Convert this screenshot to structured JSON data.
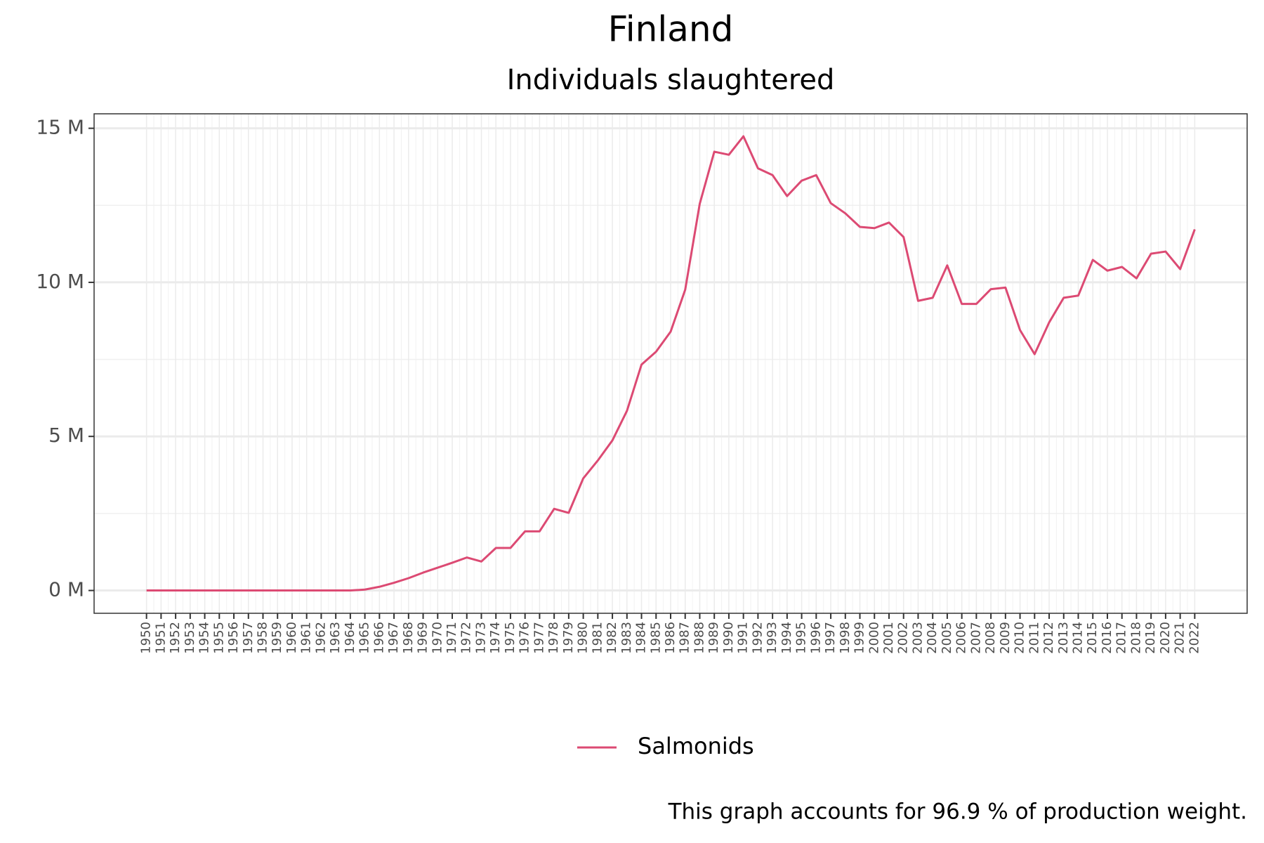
{
  "chart_data": {
    "type": "line",
    "title": "Finland",
    "subtitle": "Individuals slaughtered",
    "x": [
      1950,
      1951,
      1952,
      1953,
      1954,
      1955,
      1956,
      1957,
      1958,
      1959,
      1960,
      1961,
      1962,
      1963,
      1964,
      1965,
      1966,
      1967,
      1968,
      1969,
      1970,
      1971,
      1972,
      1973,
      1974,
      1975,
      1976,
      1977,
      1978,
      1979,
      1980,
      1981,
      1982,
      1983,
      1984,
      1985,
      1986,
      1987,
      1988,
      1989,
      1990,
      1991,
      1992,
      1993,
      1994,
      1995,
      1996,
      1997,
      1998,
      1999,
      2000,
      2001,
      2002,
      2003,
      2004,
      2005,
      2006,
      2007,
      2008,
      2009,
      2010,
      2011,
      2012,
      2013,
      2014,
      2015,
      2016,
      2017,
      2018,
      2019,
      2020,
      2021,
      2022
    ],
    "series": [
      {
        "name": "Salmonids",
        "color": "#dc4a73",
        "values": [
          0,
          0,
          0,
          0,
          0,
          0,
          0,
          0,
          0,
          0,
          0,
          0,
          0,
          0,
          0,
          0.03,
          0.12,
          0.25,
          0.4,
          0.58,
          0.74,
          0.9,
          1.07,
          0.94,
          1.38,
          1.38,
          1.92,
          1.92,
          2.65,
          2.52,
          3.64,
          4.22,
          4.87,
          5.83,
          7.33,
          7.75,
          8.4,
          9.76,
          12.55,
          14.24,
          14.14,
          14.74,
          13.7,
          13.48,
          12.8,
          13.3,
          13.48,
          12.57,
          12.24,
          11.8,
          11.76,
          11.94,
          11.47,
          9.4,
          9.5,
          10.55,
          9.3,
          9.3,
          9.78,
          9.83,
          8.45,
          7.67,
          8.7,
          9.5,
          9.57,
          10.73,
          10.38,
          10.5,
          10.13,
          10.93,
          11.0,
          10.43,
          11.72
        ]
      }
    ],
    "xlim": [
      1946.4,
      2025.6
    ],
    "ylim": [
      -0.74,
      15.47
    ],
    "yticks": [
      {
        "value": 0,
        "label": "0 M"
      },
      {
        "value": 5,
        "label": "5 M"
      },
      {
        "value": 10,
        "label": "10 M"
      },
      {
        "value": 15,
        "label": "15 M"
      }
    ],
    "yminor": [
      2.5,
      7.5,
      12.5
    ],
    "grid": true,
    "legend": "bottom",
    "caption": "This graph accounts for 96.9 % of production weight."
  }
}
